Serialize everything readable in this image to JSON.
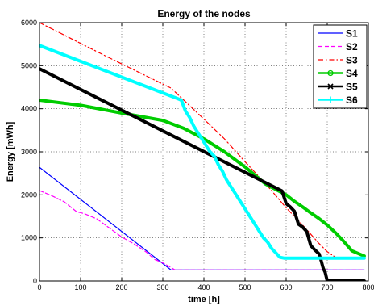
{
  "chart_data": {
    "type": "line",
    "title": "Energy of the nodes",
    "xlabel": "time [h]",
    "ylabel": "Energy [mWh]",
    "xlim": [
      0,
      800
    ],
    "ylim": [
      0,
      6000
    ],
    "xticks": [
      0,
      100,
      200,
      300,
      400,
      500,
      600,
      700,
      800
    ],
    "yticks": [
      0,
      1000,
      2000,
      3000,
      4000,
      5000,
      6000
    ],
    "grid": true,
    "legend_position": "top-right",
    "series": [
      {
        "name": "S1",
        "color": "#0000ff",
        "style": "solid",
        "marker": "none",
        "linewidth": 1.2,
        "x": [
          0,
          320,
          790
        ],
        "y": [
          2640,
          255,
          255
        ]
      },
      {
        "name": "S2",
        "color": "#ff00ff",
        "style": "dashed",
        "marker": "none",
        "linewidth": 1.2,
        "x": [
          0,
          30,
          60,
          90,
          110,
          140,
          170,
          200,
          230,
          260,
          280,
          300,
          315,
          330,
          790
        ],
        "y": [
          2100,
          1980,
          1840,
          1610,
          1560,
          1440,
          1230,
          1020,
          860,
          670,
          500,
          420,
          340,
          255,
          255
        ]
      },
      {
        "name": "S3",
        "color": "#ff0000",
        "style": "dashdot",
        "marker": "none",
        "linewidth": 1.2,
        "x": [
          0,
          160,
          320,
          390,
          450,
          500,
          550,
          600,
          640,
          680,
          700,
          720,
          790
        ],
        "y": [
          6000,
          5230,
          4480,
          3850,
          3300,
          2770,
          2260,
          1700,
          1300,
          870,
          680,
          550,
          550
        ]
      },
      {
        "name": "S4",
        "color": "#00cc00",
        "style": "solid",
        "marker": "circle",
        "linewidth": 4,
        "x": [
          0,
          100,
          200,
          300,
          350,
          400,
          450,
          500,
          550,
          600,
          620,
          640,
          660,
          680,
          700,
          720,
          740,
          760,
          790
        ],
        "y": [
          4200,
          4080,
          3900,
          3730,
          3550,
          3300,
          3000,
          2650,
          2250,
          2000,
          1850,
          1720,
          1580,
          1450,
          1300,
          1120,
          920,
          700,
          580
        ]
      },
      {
        "name": "S5",
        "color": "#000000",
        "style": "solid",
        "marker": "x",
        "linewidth": 4,
        "x": [
          0,
          590,
          600,
          610,
          620,
          630,
          640,
          650,
          660,
          670,
          680,
          685,
          690,
          695,
          700,
          790
        ],
        "y": [
          4930,
          2090,
          1800,
          1720,
          1620,
          1320,
          1250,
          1150,
          820,
          720,
          630,
          480,
          300,
          200,
          0,
          0
        ]
      },
      {
        "name": "S6",
        "color": "#00ffff",
        "style": "solid",
        "marker": "plus",
        "linewidth": 4,
        "x": [
          0,
          335,
          345,
          355,
          365,
          375,
          385,
          395,
          405,
          415,
          425,
          435,
          445,
          455,
          465,
          475,
          485,
          495,
          505,
          515,
          525,
          535,
          545,
          555,
          565,
          575,
          585,
          595,
          790
        ],
        "y": [
          5470,
          4240,
          4200,
          3950,
          3800,
          3600,
          3450,
          3300,
          3150,
          3000,
          2900,
          2700,
          2550,
          2350,
          2200,
          2050,
          1900,
          1750,
          1600,
          1450,
          1300,
          1150,
          1000,
          900,
          750,
          650,
          550,
          530,
          530
        ]
      }
    ]
  }
}
